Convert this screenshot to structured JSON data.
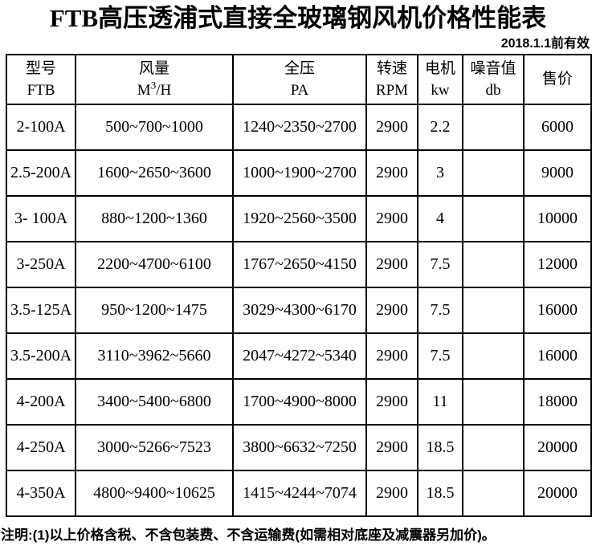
{
  "title": "FTB高压透浦式直接全玻璃钢风机价格性能表",
  "validity": "2018.1.1前有效",
  "table": {
    "headers": [
      {
        "line1": "型号",
        "line2": "FTB"
      },
      {
        "line1": "风量",
        "unit_base": "M",
        "unit_sup": "3",
        "unit_rest": "/H"
      },
      {
        "line1": "全压",
        "line2": "PA"
      },
      {
        "line1": "转速",
        "line2": "RPM"
      },
      {
        "line1": "电机",
        "line2": "kw"
      },
      {
        "line1": "噪音值",
        "line2": "db"
      },
      {
        "line1": "售价",
        "line2": ""
      }
    ],
    "rows": [
      [
        "2-100A",
        "500~700~1000",
        "1240~2350~2700",
        "2900",
        "2.2",
        "",
        "6000"
      ],
      [
        "2.5-200A",
        "1600~2650~3600",
        "1000~1900~2700",
        "2900",
        "3",
        "",
        "9000"
      ],
      [
        "3- 100A",
        "880~1200~1360",
        "1920~2560~3500",
        "2900",
        "4",
        "",
        "10000"
      ],
      [
        "3-250A",
        "2200~4700~6100",
        "1767~2650~4150",
        "2900",
        "7.5",
        "",
        "12000"
      ],
      [
        "3.5-125A",
        "950~1200~1475",
        "3029~4300~6170",
        "2900",
        "7.5",
        "",
        "16000"
      ],
      [
        "3.5-200A",
        "3110~3962~5660",
        "2047~4272~5340",
        "2900",
        "7.5",
        "",
        "16000"
      ],
      [
        "4-200A",
        "3400~5400~6800",
        "1700~4900~8000",
        "2900",
        "11",
        "",
        "18000"
      ],
      [
        "4-250A",
        "3000~5266~7523",
        "3800~6632~7250",
        "2900",
        "18.5",
        "",
        "20000"
      ],
      [
        "4-350A",
        "4800~9400~10625",
        "1415~4244~7074",
        "2900",
        "18.5",
        "",
        "20000"
      ]
    ]
  },
  "note": "注明:(1)以上价格含税、不含包装费、不含运输费(如需相对底座及减震器另加价)。"
}
